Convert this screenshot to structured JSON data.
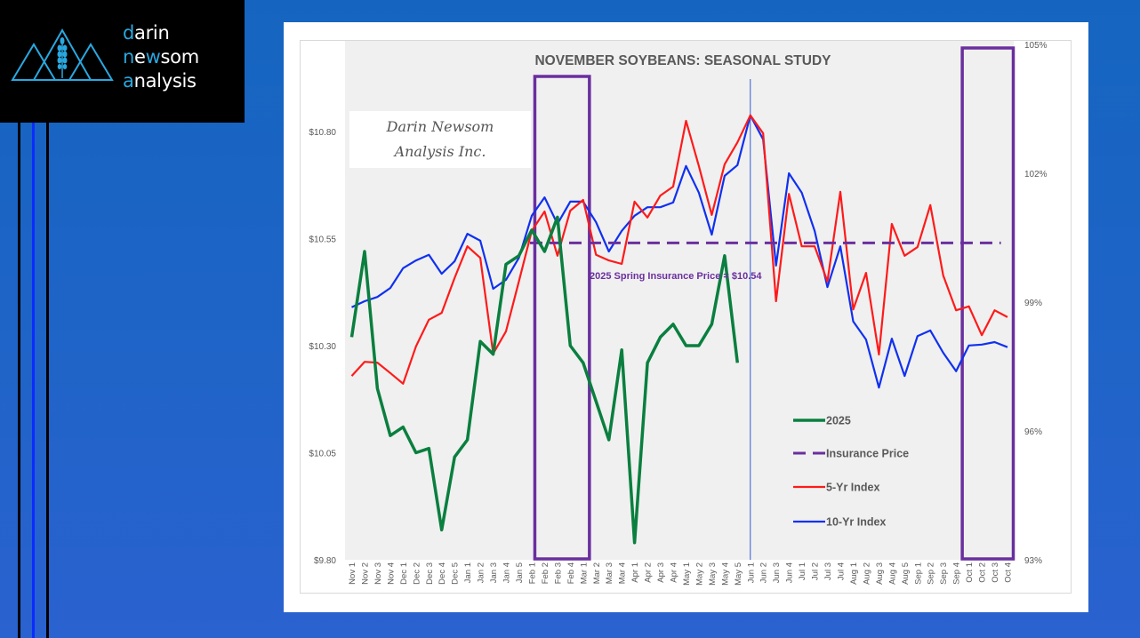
{
  "logo": {
    "line1_first": "d",
    "line1_rest": "arin",
    "line2_first": "n",
    "line2_mid1": "e",
    "line2_hl": "w",
    "line2_rest": "som",
    "line3_first": "a",
    "line3_rest": "nalysis",
    "accent_color": "#29a8e0"
  },
  "watermark": {
    "line1": "Darin Newsom",
    "line2": "Analysis Inc."
  },
  "colors": {
    "series_2025": "#0a7f3f",
    "insurance": "#6a2f9e",
    "index5": "#ff1a1a",
    "index10": "#1030f0",
    "highlight_box": "#6a2f9e",
    "marker_line": "#2e5bd6"
  },
  "chart_data": {
    "type": "line",
    "title": "NOVEMBER SOYBEANS: SEASONAL STUDY",
    "xlabel": "",
    "ylabel": "",
    "x": [
      "Nov 1",
      "Nov 2",
      "Nov 3",
      "Nov 4",
      "Dec 1",
      "Dec 2",
      "Dec 3",
      "Dec 4",
      "Dec 5",
      "Jan 1",
      "Jan 2",
      "Jan 3",
      "Jan 4",
      "Jan 5",
      "Feb 1",
      "Feb 2",
      "Feb 3",
      "Feb 4",
      "Mar 1",
      "Mar 2",
      "Mar 3",
      "Mar 4",
      "Apr 1",
      "Apr 2",
      "Apr 3",
      "Apr 4",
      "May 1",
      "May 2",
      "May 3",
      "May 4",
      "May 5",
      "Jun 1",
      "Jun 2",
      "Jun 3",
      "Jun 4",
      "Jul 1",
      "Jul 2",
      "Jul 3",
      "Jul 4",
      "Aug 1",
      "Aug 2",
      "Aug 3",
      "Aug 4",
      "Aug 5",
      "Sep 1",
      "Sep 2",
      "Sep 3",
      "Sep 4",
      "Oct 1",
      "Oct 2",
      "Oct 3",
      "Oct 4"
    ],
    "y_left": {
      "ylim": [
        9.8,
        10.8
      ],
      "ticks": [
        9.8,
        10.05,
        10.3,
        10.55,
        10.8
      ],
      "tick_labels": [
        "$9.80",
        "$10.05",
        "$10.30",
        "$10.55",
        "$10.80"
      ]
    },
    "y_right": {
      "ylim": [
        93,
        105
      ],
      "ticks": [
        93,
        96,
        99,
        102,
        105
      ],
      "tick_labels": [
        "93%",
        "96%",
        "99%",
        "102%",
        "105%"
      ]
    },
    "grid": false,
    "legend": {
      "placement": "bottom-right-inside"
    },
    "series": [
      {
        "name": "2025",
        "axis": "left",
        "style": "solid-thick",
        "values": [
          10.32,
          10.52,
          10.2,
          10.09,
          10.11,
          10.05,
          10.06,
          9.87,
          10.04,
          10.08,
          10.31,
          10.28,
          10.49,
          10.51,
          10.57,
          10.52,
          10.6,
          10.3,
          10.26,
          10.17,
          10.08,
          10.29,
          9.84,
          10.26,
          10.32,
          10.35,
          10.3,
          10.3,
          10.35,
          10.51,
          10.26
        ]
      },
      {
        "name": "Insurance Price",
        "axis": "left",
        "style": "dashed",
        "constant": 10.54,
        "x_range": [
          "Feb 1",
          "Oct 3"
        ]
      },
      {
        "name": "5-Yr Index",
        "axis": "right",
        "style": "solid",
        "values": [
          97.28,
          97.61,
          97.59,
          97.35,
          97.1,
          97.97,
          98.59,
          98.75,
          99.56,
          100.3,
          100.03,
          97.8,
          98.32,
          99.48,
          100.66,
          101.11,
          100.08,
          101.13,
          101.38,
          100.1,
          99.97,
          99.89,
          101.34,
          100.97,
          101.48,
          101.69,
          103.22,
          102.17,
          101.03,
          102.21,
          102.72,
          103.35,
          102.93,
          99.02,
          101.52,
          100.3,
          100.3,
          99.48,
          101.57,
          98.83,
          99.68,
          97.78,
          100.82,
          100.08,
          100.28,
          101.26,
          99.62,
          98.81,
          98.9,
          98.23,
          98.81,
          98.65
        ]
      },
      {
        "name": "10-Yr Index",
        "axis": "right",
        "style": "solid",
        "values": [
          98.88,
          99.02,
          99.12,
          99.33,
          99.79,
          99.97,
          100.1,
          99.66,
          99.95,
          100.59,
          100.43,
          99.31,
          99.52,
          100.03,
          101.01,
          101.44,
          100.82,
          101.34,
          101.34,
          100.86,
          100.18,
          100.66,
          101.01,
          101.21,
          101.21,
          101.32,
          102.17,
          101.55,
          100.57,
          101.94,
          102.19,
          103.35,
          102.79,
          99.85,
          102.0,
          101.55,
          100.66,
          99.35,
          100.3,
          98.55,
          98.13,
          97.01,
          98.15,
          97.28,
          98.21,
          98.34,
          97.82,
          97.39,
          97.99,
          98.01,
          98.07,
          97.95
        ]
      }
    ],
    "annotations": [
      {
        "text": "2025 Spring Insurance Price = $10.54",
        "type": "label"
      },
      {
        "type": "vertical-line",
        "at": "Jun 1"
      },
      {
        "type": "highlight-box",
        "from": "Feb 1",
        "to": "Feb 4"
      },
      {
        "type": "highlight-box",
        "from": "Oct 1",
        "to": "Oct 4"
      }
    ]
  }
}
